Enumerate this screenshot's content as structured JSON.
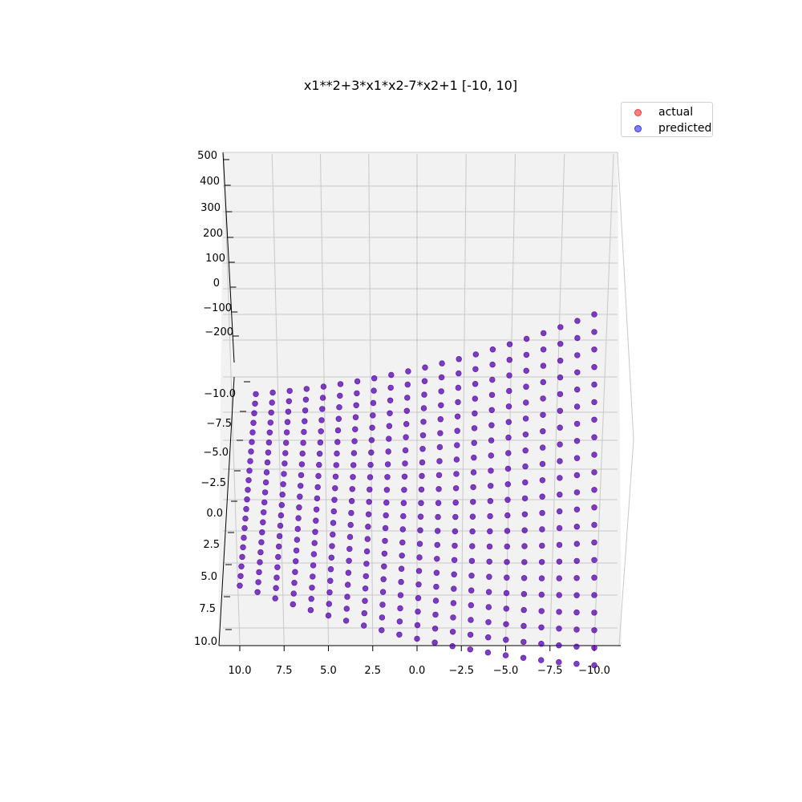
{
  "chart_data": {
    "type": "scatter",
    "title": "x1**2+3*x1*x2-7*x2+1 [-10, 10]",
    "function": "x1**2+3*x1*x2-7*x2+1",
    "x1_range": [
      -10,
      10
    ],
    "x2_range": [
      -10,
      10
    ],
    "grid_points_per_axis": 21,
    "x1_tick_labels": [
      "10.0",
      "7.5",
      "5.0",
      "2.5",
      "0.0",
      "−2.5",
      "−5.0",
      "−7.5",
      "−10.0"
    ],
    "x2_tick_labels": [
      "−10.0",
      "−7.5",
      "−5.0",
      "−2.5",
      "0.0",
      "2.5",
      "5.0",
      "7.5",
      "10.0"
    ],
    "z_tick_labels": [
      "500",
      "400",
      "300",
      "200",
      "100",
      "0",
      "−100",
      "−200"
    ],
    "z_range": [
      -200,
      500
    ],
    "grid": true,
    "legend_position": "top-right",
    "series": [
      {
        "name": "actual",
        "color": "#ff0000",
        "alpha": 0.5
      },
      {
        "name": "predicted",
        "color": "#0000ff",
        "alpha": 0.5
      }
    ]
  },
  "legend": {
    "actual_label": "actual",
    "predicted_label": "predicted"
  }
}
